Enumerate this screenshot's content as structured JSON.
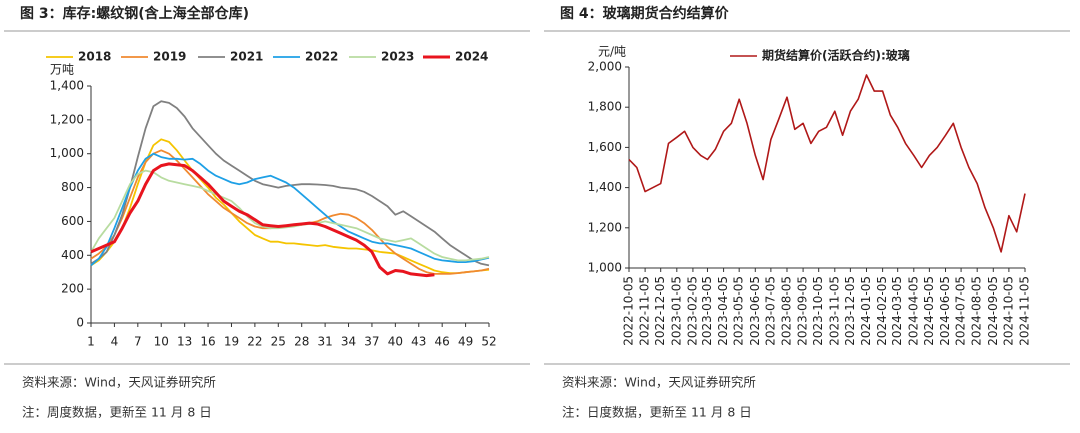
{
  "chart_data": [
    {
      "type": "line",
      "title": "图 3：库存:螺纹钢(含上海全部仓库)",
      "y_unit": "万吨",
      "source": "资料来源：Wind，天风证券研究所",
      "note": "注：周度数据，更新至 11 月 8 日",
      "x": [
        1,
        2,
        3,
        4,
        5,
        6,
        7,
        8,
        9,
        10,
        11,
        12,
        13,
        14,
        15,
        16,
        17,
        18,
        19,
        20,
        21,
        22,
        23,
        24,
        25,
        26,
        27,
        28,
        29,
        30,
        31,
        32,
        33,
        34,
        35,
        36,
        37,
        38,
        39,
        40,
        41,
        42,
        43,
        44,
        45,
        46,
        47,
        48,
        49,
        50,
        51,
        52
      ],
      "xlim": [
        1,
        52
      ],
      "xticks": [
        1,
        4,
        7,
        10,
        13,
        16,
        19,
        22,
        25,
        28,
        31,
        34,
        37,
        40,
        43,
        46,
        49,
        52
      ],
      "ylim": [
        0,
        1400
      ],
      "yticks": [
        0,
        200,
        400,
        600,
        800,
        {
          "value": 1000,
          "label": "1,000"
        },
        {
          "value": 1200,
          "label": "1,200"
        },
        {
          "value": 1400,
          "label": "1,400"
        }
      ],
      "series": [
        {
          "name": "2018",
          "color": "#f5c400",
          "values": [
            340,
            370,
            420,
            480,
            560,
            680,
            820,
            950,
            1050,
            1085,
            1070,
            1020,
            960,
            900,
            850,
            800,
            740,
            700,
            650,
            600,
            560,
            520,
            500,
            480,
            480,
            470,
            470,
            465,
            460,
            455,
            460,
            450,
            445,
            440,
            440,
            435,
            430,
            420,
            415,
            410,
            390,
            370,
            350,
            330,
            310,
            300,
            295,
            295,
            300,
            305,
            310,
            315
          ]
        },
        {
          "name": "2019",
          "color": "#f08a30",
          "values": [
            380,
            410,
            450,
            520,
            620,
            740,
            860,
            950,
            1000,
            1020,
            1000,
            960,
            910,
            860,
            810,
            760,
            720,
            680,
            650,
            620,
            590,
            570,
            560,
            560,
            565,
            570,
            575,
            580,
            590,
            600,
            620,
            635,
            645,
            640,
            620,
            590,
            550,
            500,
            450,
            410,
            380,
            350,
            320,
            300,
            290,
            290,
            290,
            295,
            300,
            305,
            310,
            320
          ]
        },
        {
          "name": "2021",
          "color": "#808080",
          "values": [
            350,
            380,
            420,
            520,
            640,
            800,
            980,
            1150,
            1280,
            1310,
            1300,
            1270,
            1220,
            1150,
            1100,
            1050,
            1000,
            960,
            930,
            900,
            870,
            840,
            820,
            810,
            800,
            810,
            815,
            820,
            820,
            818,
            815,
            810,
            800,
            795,
            790,
            775,
            750,
            720,
            690,
            640,
            660,
            630,
            600,
            570,
            540,
            500,
            460,
            430,
            400,
            370,
            350,
            340
          ]
        },
        {
          "name": "2022",
          "color": "#1ea0e6",
          "values": [
            340,
            380,
            450,
            560,
            680,
            800,
            900,
            970,
            1000,
            980,
            970,
            970,
            965,
            970,
            940,
            900,
            870,
            850,
            830,
            820,
            830,
            850,
            860,
            870,
            850,
            830,
            800,
            760,
            720,
            680,
            640,
            600,
            570,
            540,
            520,
            500,
            480,
            470,
            470,
            460,
            450,
            440,
            420,
            400,
            380,
            370,
            365,
            360,
            360,
            365,
            375,
            385
          ]
        },
        {
          "name": "2023",
          "color": "#b8dca0",
          "values": [
            420,
            500,
            560,
            620,
            720,
            820,
            880,
            900,
            890,
            860,
            840,
            830,
            820,
            810,
            800,
            780,
            760,
            740,
            720,
            680,
            630,
            590,
            570,
            560,
            560,
            565,
            570,
            580,
            585,
            590,
            600,
            590,
            580,
            570,
            560,
            540,
            520,
            500,
            490,
            480,
            490,
            500,
            470,
            440,
            410,
            390,
            380,
            370,
            370,
            375,
            380,
            390
          ]
        },
        {
          "name": "2024",
          "color": "#e8141e",
          "values": [
            420,
            440,
            460,
            480,
            560,
            650,
            720,
            820,
            900,
            930,
            940,
            935,
            930,
            900,
            860,
            820,
            770,
            720,
            690,
            660,
            640,
            610,
            580,
            575,
            570,
            575,
            580,
            585,
            590,
            585,
            570,
            550,
            530,
            510,
            490,
            460,
            420,
            330,
            290,
            310,
            305,
            290,
            285,
            280,
            285,
            null,
            null,
            null,
            null,
            null,
            null,
            null
          ]
        }
      ]
    },
    {
      "type": "line",
      "title": "图 4：玻璃期货合约结算价",
      "y_unit": "元/吨",
      "source": "资料来源：Wind，天风证券研究所",
      "note": "注：日度数据，更新至 11 月 8 日",
      "x": [
        "2022-10-05",
        "2022-10-20",
        "2022-11-05",
        "2022-11-20",
        "2022-12-05",
        "2022-12-20",
        "2023-01-05",
        "2023-01-20",
        "2023-02-05",
        "2023-02-20",
        "2023-03-05",
        "2023-03-20",
        "2023-04-05",
        "2023-04-20",
        "2023-05-05",
        "2023-05-20",
        "2023-06-05",
        "2023-06-20",
        "2023-07-05",
        "2023-07-20",
        "2023-08-05",
        "2023-08-20",
        "2023-09-05",
        "2023-09-20",
        "2023-10-05",
        "2023-10-20",
        "2023-11-05",
        "2023-11-20",
        "2023-12-05",
        "2023-12-20",
        "2024-01-05",
        "2024-01-20",
        "2024-02-05",
        "2024-02-20",
        "2024-03-05",
        "2024-03-20",
        "2024-04-05",
        "2024-04-20",
        "2024-05-05",
        "2024-05-20",
        "2024-06-05",
        "2024-06-20",
        "2024-07-05",
        "2024-07-20",
        "2024-08-05",
        "2024-08-20",
        "2024-09-05",
        "2024-09-20",
        "2024-10-05",
        "2024-10-20",
        "2024-11-05"
      ],
      "xlim": [
        "2022-10-05",
        "2024-11-05"
      ],
      "xticks": [
        "2022-10-05",
        "2022-11-05",
        "2022-12-05",
        "2023-01-05",
        "2023-02-05",
        "2023-03-05",
        "2023-04-05",
        "2023-05-05",
        "2023-06-05",
        "2023-07-05",
        "2023-08-05",
        "2023-09-05",
        "2023-10-05",
        "2023-11-05",
        "2023-12-05",
        "2024-01-05",
        "2024-02-05",
        "2024-03-05",
        "2024-04-05",
        "2024-05-05",
        "2024-06-05",
        "2024-07-05",
        "2024-08-05",
        "2024-09-05",
        "2024-10-05",
        "2024-11-05"
      ],
      "ylim": [
        1000,
        2000
      ],
      "yticks": [
        {
          "value": 1000,
          "label": "1,000"
        },
        {
          "value": 1200,
          "label": "1,200"
        },
        {
          "value": 1400,
          "label": "1,400"
        },
        {
          "value": 1600,
          "label": "1,600"
        },
        {
          "value": 1800,
          "label": "1,800"
        },
        {
          "value": 2000,
          "label": "2,000"
        }
      ],
      "series": [
        {
          "name": "期货结算价(活跃合约):玻璃",
          "color": "#b01818",
          "values": [
            1540,
            1500,
            1380,
            1400,
            1420,
            1620,
            1650,
            1680,
            1600,
            1560,
            1540,
            1590,
            1680,
            1720,
            1840,
            1720,
            1560,
            1440,
            1640,
            1740,
            1850,
            1690,
            1720,
            1620,
            1680,
            1700,
            1780,
            1660,
            1780,
            1840,
            1960,
            1880,
            1880,
            1760,
            1700,
            1620,
            1560,
            1500,
            1560,
            1600,
            1660,
            1720,
            1600,
            1500,
            1420,
            1300,
            1200,
            1080,
            1260,
            1180,
            1370
          ]
        }
      ]
    }
  ]
}
